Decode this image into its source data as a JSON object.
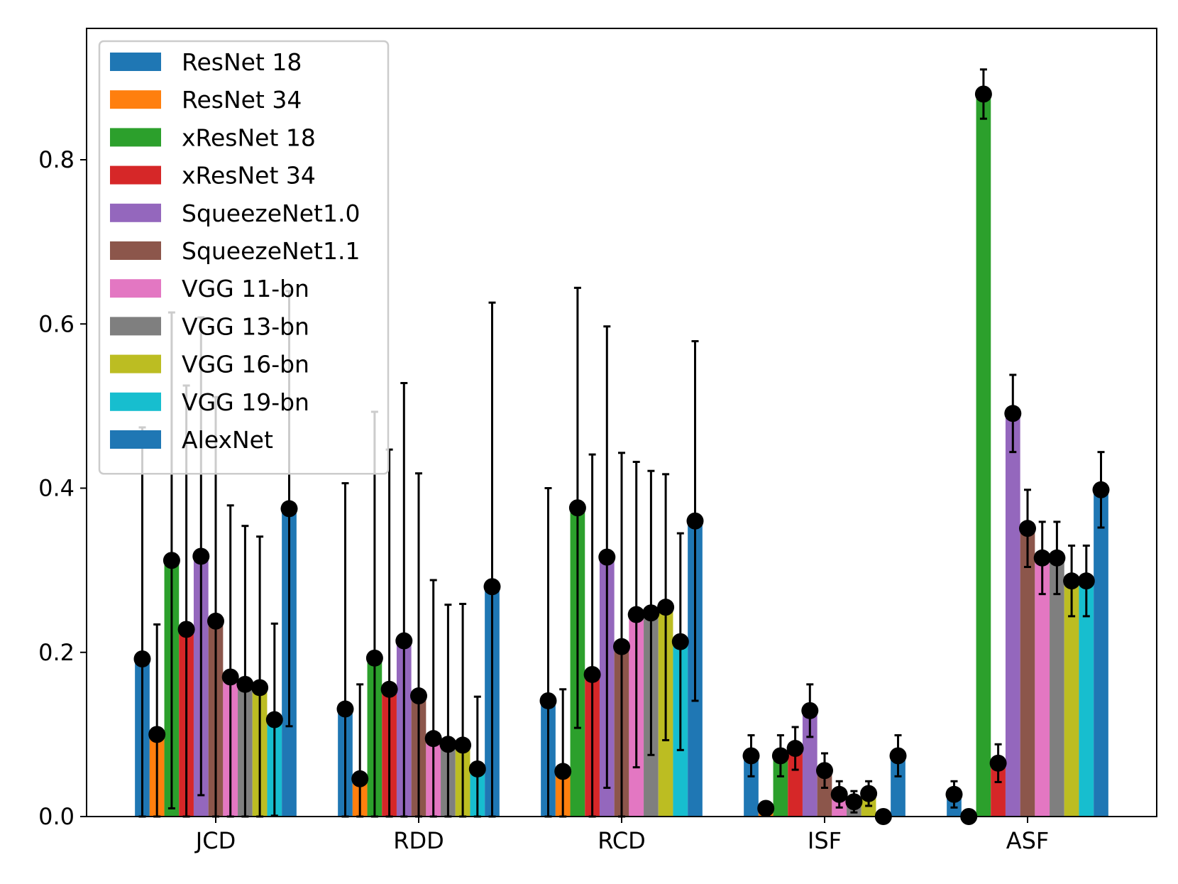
{
  "chart_data": {
    "type": "bar",
    "title": "",
    "xlabel": "",
    "ylabel": "",
    "ylim": [
      0,
      0.96
    ],
    "yticks": [
      0.0,
      0.2,
      0.4,
      0.6,
      0.8
    ],
    "ytick_labels": [
      "0.0",
      "0.2",
      "0.4",
      "0.6",
      "0.8"
    ],
    "categories": [
      "JCD",
      "RDD",
      "RCD",
      "ISF",
      "ASF"
    ],
    "legend_position": "top-left",
    "error_bars": true,
    "series": [
      {
        "name": "ResNet 18",
        "color": "#1f77b4",
        "values": [
          0.192,
          0.131,
          0.141,
          0.074,
          0.027
        ],
        "errors": [
          0.282,
          0.275,
          0.259,
          0.025,
          0.016
        ]
      },
      {
        "name": "ResNet 34",
        "color": "#ff7f0e",
        "values": [
          0.1,
          0.046,
          0.055,
          0.01,
          0.0
        ],
        "errors": [
          0.134,
          0.115,
          0.1,
          0.008,
          0.002
        ]
      },
      {
        "name": "xResNet 18",
        "color": "#2ca02c",
        "values": [
          0.312,
          0.193,
          0.376,
          0.074,
          0.88
        ],
        "errors": [
          0.302,
          0.3,
          0.268,
          0.025,
          0.03
        ]
      },
      {
        "name": "xResNet 34",
        "color": "#d62728",
        "values": [
          0.228,
          0.155,
          0.173,
          0.083,
          0.065
        ],
        "errors": [
          0.297,
          0.292,
          0.268,
          0.026,
          0.023
        ]
      },
      {
        "name": "SqueezeNet1.0",
        "color": "#9467bd",
        "values": [
          0.317,
          0.214,
          0.316,
          0.129,
          0.491
        ],
        "errors": [
          0.291,
          0.314,
          0.281,
          0.032,
          0.047
        ]
      },
      {
        "name": "SqueezeNet1.1",
        "color": "#8c564b",
        "values": [
          0.238,
          0.147,
          0.207,
          0.056,
          0.351
        ],
        "errors": [
          0.273,
          0.271,
          0.236,
          0.021,
          0.047
        ]
      },
      {
        "name": "VGG 11-bn",
        "color": "#e377c2",
        "values": [
          0.17,
          0.095,
          0.246,
          0.027,
          0.315
        ],
        "errors": [
          0.209,
          0.193,
          0.186,
          0.016,
          0.044
        ]
      },
      {
        "name": "VGG 13-bn",
        "color": "#7f7f7f",
        "values": [
          0.161,
          0.088,
          0.248,
          0.018,
          0.315
        ],
        "errors": [
          0.193,
          0.17,
          0.173,
          0.013,
          0.044
        ]
      },
      {
        "name": "VGG 16-bn",
        "color": "#bcbd22",
        "values": [
          0.157,
          0.087,
          0.255,
          0.028,
          0.287
        ],
        "errors": [
          0.184,
          0.172,
          0.162,
          0.015,
          0.043
        ]
      },
      {
        "name": "VGG 19-bn",
        "color": "#17becf",
        "values": [
          0.118,
          0.058,
          0.213,
          0.0,
          0.287
        ],
        "errors": [
          0.117,
          0.088,
          0.132,
          0.002,
          0.043
        ]
      },
      {
        "name": "AlexNet",
        "color": "#1f77b4",
        "values": [
          0.375,
          0.28,
          0.36,
          0.074,
          0.398
        ],
        "errors": [
          0.265,
          0.346,
          0.219,
          0.025,
          0.046
        ]
      }
    ]
  }
}
